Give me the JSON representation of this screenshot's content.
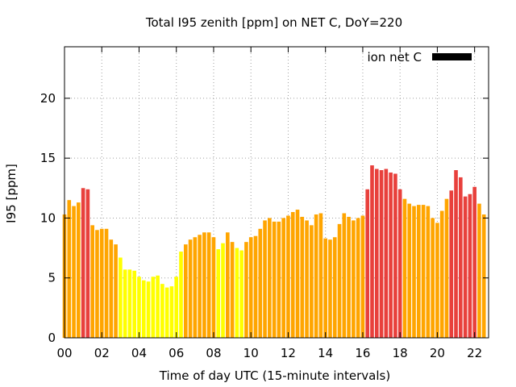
{
  "chart_data": {
    "type": "bar",
    "title": "Total I95 zenith [ppm] on NET C, DoY=220",
    "xlabel": "Time of day UTC (15-minute intervals)",
    "ylabel": "I95 [ppm]",
    "xlim": [
      0,
      22.75
    ],
    "ylim": [
      0,
      24.3
    ],
    "xticks": [
      {
        "value": 0,
        "label": "00"
      },
      {
        "value": 2,
        "label": "02"
      },
      {
        "value": 4,
        "label": "04"
      },
      {
        "value": 6,
        "label": "06"
      },
      {
        "value": 8,
        "label": "08"
      },
      {
        "value": 10,
        "label": "10"
      },
      {
        "value": 12,
        "label": "12"
      },
      {
        "value": 14,
        "label": "14"
      },
      {
        "value": 16,
        "label": "16"
      },
      {
        "value": 18,
        "label": "18"
      },
      {
        "value": 20,
        "label": "20"
      },
      {
        "value": 22,
        "label": "22"
      }
    ],
    "yticks": [
      {
        "value": 0,
        "label": "0"
      },
      {
        "value": 5,
        "label": "5"
      },
      {
        "value": 10,
        "label": "10"
      },
      {
        "value": 15,
        "label": "15"
      },
      {
        "value": 20,
        "label": "20"
      }
    ],
    "grid": true,
    "interval_hours": 0.25,
    "legend": {
      "label": "ion net C",
      "placement": "top-right",
      "color": "#000000"
    },
    "colors": {
      "low": "#ffff00",
      "mid": "#ffa500",
      "high": "#e8403c"
    },
    "values": [
      10.3,
      11.5,
      11.0,
      11.3,
      12.5,
      12.4,
      9.4,
      9.0,
      9.1,
      9.1,
      8.2,
      7.8,
      6.7,
      5.7,
      5.7,
      5.6,
      5.1,
      4.8,
      4.7,
      5.1,
      5.2,
      4.5,
      4.2,
      4.3,
      5.1,
      7.2,
      7.8,
      8.2,
      8.4,
      8.6,
      8.8,
      8.8,
      8.4,
      7.4,
      7.9,
      8.8,
      8.0,
      7.5,
      7.3,
      8.0,
      8.4,
      8.5,
      9.1,
      9.8,
      10.0,
      9.7,
      9.7,
      10.0,
      10.2,
      10.5,
      10.7,
      10.1,
      9.8,
      9.4,
      10.3,
      10.4,
      8.3,
      8.2,
      8.4,
      9.5,
      10.4,
      10.1,
      9.8,
      10.0,
      10.2,
      12.4,
      14.4,
      14.1,
      14.0,
      14.1,
      13.8,
      13.7,
      12.4,
      11.6,
      11.2,
      11.0,
      11.1,
      11.1,
      11.0,
      10.0,
      9.6,
      10.6,
      11.6,
      12.3,
      14.0,
      13.4,
      11.8,
      12.0,
      12.6,
      11.2,
      10.3
    ],
    "bar_colors": [
      "mid",
      "mid",
      "mid",
      "mid",
      "high",
      "high",
      "mid",
      "mid",
      "mid",
      "mid",
      "mid",
      "mid",
      "low",
      "low",
      "low",
      "low",
      "low",
      "low",
      "low",
      "low",
      "low",
      "low",
      "low",
      "low",
      "low",
      "low",
      "mid",
      "mid",
      "mid",
      "mid",
      "mid",
      "mid",
      "mid",
      "low",
      "low",
      "mid",
      "mid",
      "low",
      "low",
      "mid",
      "mid",
      "mid",
      "mid",
      "mid",
      "mid",
      "mid",
      "mid",
      "mid",
      "mid",
      "mid",
      "mid",
      "mid",
      "mid",
      "mid",
      "mid",
      "mid",
      "mid",
      "mid",
      "mid",
      "mid",
      "mid",
      "mid",
      "mid",
      "mid",
      "mid",
      "high",
      "high",
      "high",
      "high",
      "high",
      "high",
      "high",
      "high",
      "mid",
      "mid",
      "mid",
      "mid",
      "mid",
      "mid",
      "mid",
      "mid",
      "mid",
      "mid",
      "high",
      "high",
      "high",
      "high",
      "high",
      "high",
      "mid",
      "mid"
    ]
  }
}
